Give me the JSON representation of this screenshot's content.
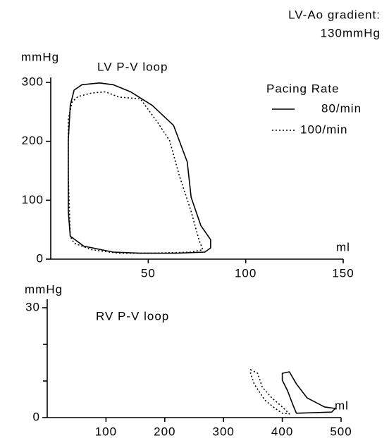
{
  "chart_data": [
    {
      "type": "line",
      "title": "LV P-V loop",
      "y_label": "mmHg",
      "x_label": "ml",
      "annotations": [
        "LV-Ao gradient:",
        "130mmHg"
      ],
      "legend_title": "Pacing Rate",
      "legend": "upper right",
      "xlim": [
        0,
        150
      ],
      "xticks": [
        50,
        100,
        150
      ],
      "ylim": [
        0,
        300
      ],
      "yticks": [
        0,
        100,
        200,
        300
      ],
      "series": [
        {
          "name": "80/min",
          "color": "#000000",
          "style": "solid",
          "x": [
            10,
            9,
            9,
            10,
            12,
            16,
            25,
            32,
            41,
            52,
            63,
            70,
            72,
            77,
            82,
            82,
            79,
            64,
            46,
            32,
            17
          ],
          "values": [
            39,
            81,
            201,
            261,
            287,
            296,
            299,
            296,
            284,
            261,
            227,
            165,
            105,
            57,
            33,
            19,
            12,
            10,
            10,
            12,
            22
          ]
        },
        {
          "name": "100/min",
          "color": "#000000",
          "style": "dotted",
          "x": [
            10,
            9,
            9,
            11,
            14,
            21,
            28,
            35,
            46,
            55,
            61,
            66,
            72,
            76,
            78,
            72,
            53,
            35,
            21,
            12
          ],
          "values": [
            39,
            141,
            237,
            267,
            276,
            282,
            284,
            275,
            272,
            231,
            201,
            141,
            81,
            33,
            16,
            12,
            10,
            10,
            16,
            27
          ]
        }
      ]
    },
    {
      "type": "line",
      "title": "RV P-V loop",
      "y_label": "mmHg",
      "x_label": "ml",
      "xlim": [
        0,
        500
      ],
      "xticks": [
        100,
        200,
        300,
        400,
        500
      ],
      "ylim": [
        0,
        30
      ],
      "yticks": [
        0,
        30
      ],
      "minor_yticks": [
        10,
        20
      ],
      "series": [
        {
          "name": "80/min",
          "color": "#000000",
          "style": "solid",
          "x": [
            400,
            412,
            424,
            442,
            472,
            490,
            484,
            448,
            424,
            418,
            409,
            400
          ],
          "values": [
            12.1,
            12.5,
            9.2,
            5.4,
            2.9,
            2.5,
            1.5,
            1.3,
            1.2,
            3.5,
            7.3,
            10.2
          ]
        },
        {
          "name": "100/min",
          "color": "#000000",
          "style": "dotted",
          "x": [
            346,
            358,
            366,
            382,
            400,
            412,
            400,
            388,
            370,
            352,
            346
          ],
          "values": [
            13.1,
            12.1,
            8.3,
            5.4,
            2.9,
            1.0,
            1.2,
            2.5,
            4.8,
            9.2,
            12.1
          ]
        }
      ]
    }
  ]
}
